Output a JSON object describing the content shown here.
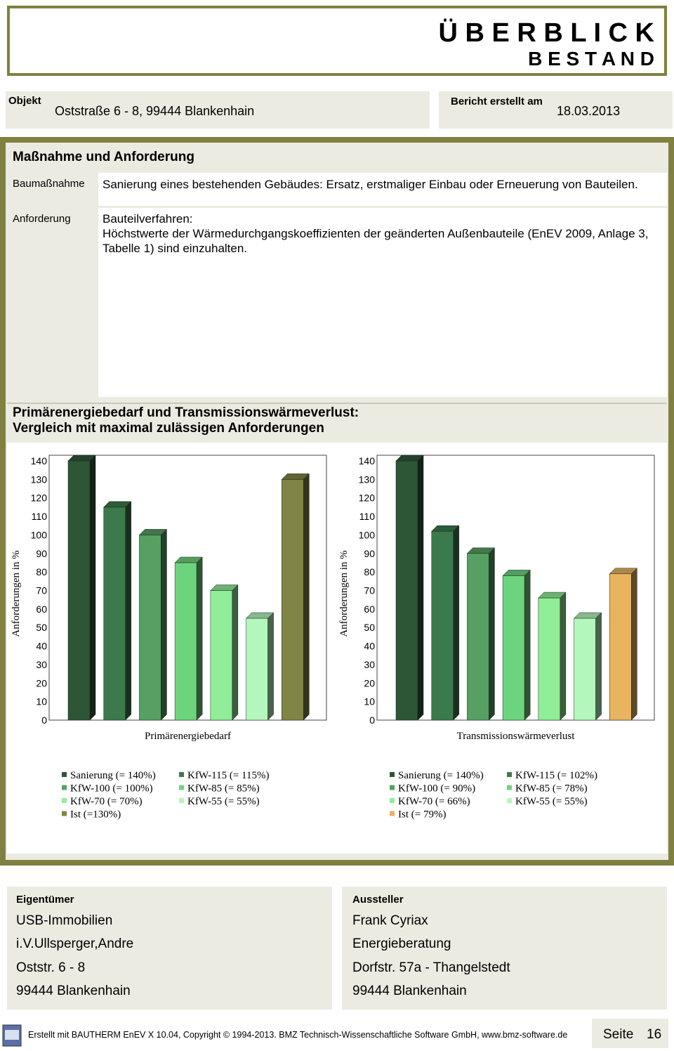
{
  "header": {
    "title": "Ü B E R B L I C K",
    "subtitle": "B E S T A N D"
  },
  "object": {
    "label": "Objekt",
    "value": "Oststraße 6 - 8, 99444 Blankenhain"
  },
  "report": {
    "label": "Bericht erstellt am",
    "value": "18.03.2013"
  },
  "measures": {
    "title": "Maßnahme und Anforderung",
    "rows": [
      [
        "Baumaßnahme",
        "Sanierung eines bestehenden Gebäudes: Ersatz, erstmaliger Einbau oder Erneuerung von Bauteilen."
      ],
      [
        "Anforderung",
        "Bauteilverfahren:\nHöchstwerte der Wärmedurchgangskoeffizienten der geänderten Außenbauteile (EnEV 2009, Anlage 3, Tabelle 1) sind einzuhalten."
      ]
    ]
  },
  "chart_section": {
    "title": "Primärenergiebedarf und Transmissionswärmeverlust:\nVergleich mit maximal zulässigen Anforderungen"
  },
  "chart_data": [
    {
      "type": "bar",
      "y_label": "Anforderungen in %",
      "categories": [
        "Primärenergiebedarf"
      ],
      "series": [
        {
          "name": "Sanierung (= 140%)",
          "color": "#2d5637",
          "values": [
            140
          ]
        },
        {
          "name": "KfW-115 (= 115%)",
          "color": "#3b7a4a",
          "values": [
            115
          ]
        },
        {
          "name": "KfW-100 (= 100%)",
          "color": "#55a062",
          "values": [
            100
          ]
        },
        {
          "name": "KfW-85 (= 85%)",
          "color": "#6dd47e",
          "values": [
            85
          ]
        },
        {
          "name": "KfW-70 (= 70%)",
          "color": "#90ee98",
          "values": [
            70
          ]
        },
        {
          "name": "KfW-55 (= 55%)",
          "color": "#b3f7bc",
          "values": [
            55
          ]
        },
        {
          "name": "Ist (=130%)",
          "color": "#808545",
          "values": [
            130
          ]
        }
      ],
      "ylim": [
        0,
        140
      ],
      "yticks": [
        0,
        10,
        20,
        30,
        40,
        50,
        60,
        70,
        80,
        90,
        100,
        110,
        120,
        130,
        140
      ],
      "legend": "bottom"
    },
    {
      "type": "bar",
      "y_label": "Anforderungen in %",
      "categories": [
        "Transmissionswärmeverlust"
      ],
      "series": [
        {
          "name": "Sanierung (= 140%)",
          "color": "#2d5637",
          "values": [
            140
          ]
        },
        {
          "name": "KfW-115 (= 102%)",
          "color": "#3b7a4a",
          "values": [
            102
          ]
        },
        {
          "name": "KfW-100 (= 90%)",
          "color": "#55a062",
          "values": [
            90
          ]
        },
        {
          "name": "KfW-85 (= 78%)",
          "color": "#6dd47e",
          "values": [
            78
          ]
        },
        {
          "name": "KfW-70 (= 66%)",
          "color": "#90ee98",
          "values": [
            66
          ]
        },
        {
          "name": "KfW-55 (= 55%)",
          "color": "#b3f7bc",
          "values": [
            55
          ]
        },
        {
          "name": "Ist (= 79%)",
          "color": "#e8b460",
          "values": [
            79
          ]
        }
      ],
      "ylim": [
        0,
        140
      ],
      "yticks": [
        0,
        10,
        20,
        30,
        40,
        50,
        60,
        70,
        80,
        90,
        100,
        110,
        120,
        130,
        140
      ],
      "legend": "bottom"
    }
  ],
  "owner": {
    "title": "Eigentümer",
    "lines": [
      "USB-Immobilien",
      "i.V.Ullsperger,Andre",
      "Oststr. 6 - 8",
      "99444 Blankenhain"
    ]
  },
  "issuer": {
    "title": "Aussteller",
    "lines": [
      "Frank Cyriax",
      "Energieberatung",
      "Dorfstr. 57a - Thangelstedt",
      "99444 Blankenhain"
    ]
  },
  "footer": {
    "text": "Erstellt mit BAUTHERM EnEV X 10.04, Copyright © 1994-2013. BMZ Technisch-Wissenschaftliche Software GmbH, www.bmz-software.de",
    "page_label": "Seite",
    "page_number": "16"
  }
}
